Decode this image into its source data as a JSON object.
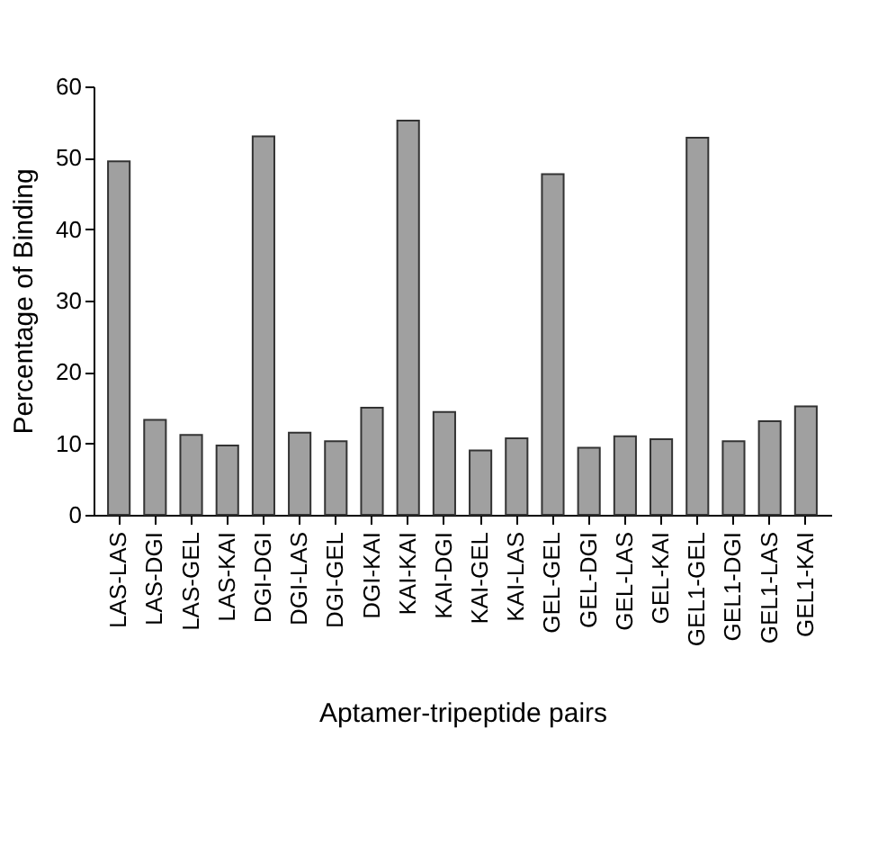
{
  "chart_data": {
    "type": "bar",
    "xlabel": "Aptamer-tripeptide pairs",
    "ylabel": "Percentage of Binding",
    "categories": [
      "LAS-LAS",
      "LAS-DGI",
      "LAS-GEL",
      "LAS-KAI",
      "DGI-DGI",
      "DGI-LAS",
      "DGI-GEL",
      "DGI-KAI",
      "KAI-KAI",
      "KAI-DGI",
      "KAI-GEL",
      "KAI-LAS",
      "GEL-GEL",
      "GEL-DGI",
      "GEL-LAS",
      "GEL-KAI",
      "GEL1-GEL",
      "GEL1-DGI",
      "GEL1-LAS",
      "GEL1-KAI"
    ],
    "values": [
      49.5,
      13.3,
      11.2,
      9.7,
      53,
      11.5,
      10.3,
      15,
      55.2,
      14.4,
      9,
      10.7,
      47.7,
      9.4,
      11,
      10.6,
      52.8,
      10.3,
      13.1,
      15.2
    ],
    "color": "#a0a0a0",
    "ylim": [
      0,
      60
    ],
    "yticks": [
      0,
      10,
      20,
      30,
      40,
      50,
      60
    ],
    "grid": false
  }
}
